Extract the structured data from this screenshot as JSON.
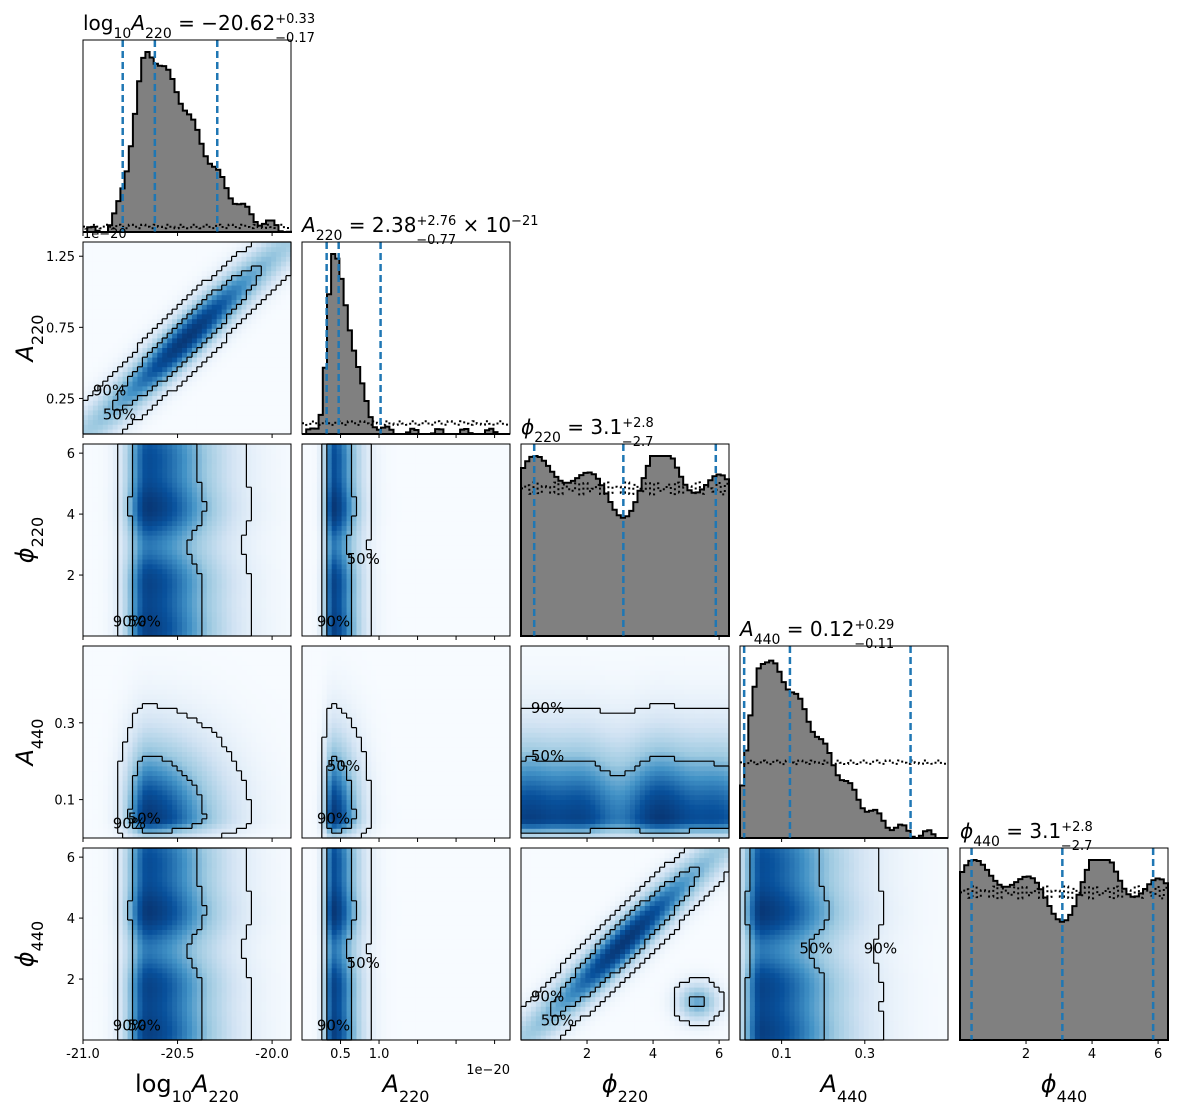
{
  "chart_data": {
    "type": "corner",
    "parameters": [
      {
        "id": "log10A220",
        "label_base": "log",
        "label_sub": "10",
        "label_main": "A",
        "label_main_sub": "220",
        "range": [
          -21.0,
          -19.9
        ],
        "ticks": [
          -21.0,
          -20.5,
          -20.0
        ],
        "tick_labels": [
          "-21.0",
          "-20.5",
          "-20.0"
        ],
        "title_value": "−20.62",
        "title_plus": "+0.33",
        "title_minus": "−0.17",
        "title_suffix": "",
        "quantiles": [
          -20.79,
          -20.62,
          -20.29
        ],
        "hist_mode": -20.66,
        "hist_skew_right": 0.26,
        "hist_skew_left": 0.08,
        "prior_level": 0.03,
        "scale_note": ""
      },
      {
        "id": "A220",
        "label_main": "A",
        "label_main_sub": "220",
        "range": [
          0.0,
          1.35
        ],
        "ticks": [
          0.25,
          0.5,
          0.75,
          1.0,
          1.25
        ],
        "tick_labels": [
          "0.5",
          "1.0"
        ],
        "row_tick_labels": [
          "0.25",
          "0.75",
          "1.25"
        ],
        "title_value": "2.38",
        "title_plus": "+2.76",
        "title_minus": "−0.77",
        "title_suffix": "× 10",
        "title_suffix_exp": "−21",
        "quantiles": [
          0.16,
          0.238,
          0.51
        ],
        "hist_mode": 0.2,
        "hist_skew_right": 0.12,
        "hist_skew_left": 0.04,
        "prior_level": 0.06,
        "scale_note": "1e−20"
      },
      {
        "id": "phi220",
        "label_main": "ϕ",
        "label_main_sub": "220",
        "range": [
          0.0,
          6.3
        ],
        "ticks": [
          2,
          4,
          6
        ],
        "tick_labels": [
          "2",
          "4",
          "6"
        ],
        "title_value": "3.1",
        "title_plus": "+2.8",
        "title_minus": "−2.7",
        "title_suffix": "",
        "quantiles": [
          0.4,
          3.1,
          5.9
        ],
        "hist_flat": true,
        "prior_level": 0.82,
        "scale_note": ""
      },
      {
        "id": "A440",
        "label_main": "A",
        "label_main_sub": "440",
        "range": [
          0.0,
          0.5
        ],
        "ticks": [
          0.1,
          0.3
        ],
        "tick_labels": [
          "0.1",
          "0.3"
        ],
        "title_value": "0.12",
        "title_plus": "+0.29",
        "title_minus": "−0.11",
        "title_suffix": "",
        "quantiles": [
          0.01,
          0.12,
          0.41
        ],
        "hist_mode": 0.05,
        "hist_skew_right": 0.14,
        "hist_skew_left": 0.03,
        "prior_level": 0.42,
        "scale_note": ""
      },
      {
        "id": "phi440",
        "label_main": "ϕ",
        "label_main_sub": "440",
        "range": [
          0.0,
          6.3
        ],
        "ticks": [
          2,
          4,
          6
        ],
        "tick_labels": [
          "2",
          "4",
          "6"
        ],
        "title_value": "3.1",
        "title_plus": "+2.8",
        "title_minus": "−2.7",
        "title_suffix": "",
        "quantiles": [
          0.35,
          3.1,
          5.85
        ],
        "hist_flat": true,
        "prior_level": 0.82,
        "scale_note": ""
      }
    ],
    "contour_levels": [
      "50%",
      "90%"
    ],
    "bins": 50,
    "colors": {
      "hist_fill": "#808080",
      "hist_edge": "#000000",
      "quantile_line": "#1f77b4",
      "prior_line": "#000000",
      "density_low": "#f7fbff",
      "density_high": "#08306b",
      "contour": "#000000"
    },
    "density_correlation": {
      "A220|log10A220": 0.98,
      "phi440|phi220": 0.85
    }
  }
}
